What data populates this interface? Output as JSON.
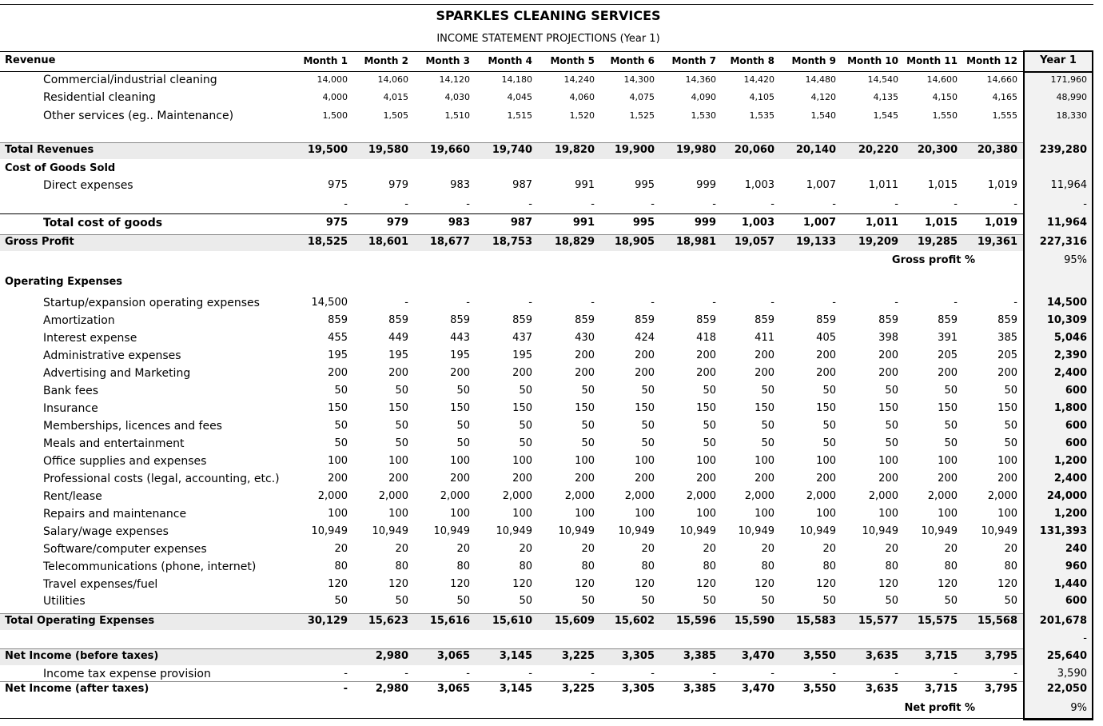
{
  "header": {
    "title": "SPARKLES CLEANING SERVICES",
    "subtitle": "INCOME STATEMENT PROJECTIONS (Year 1)"
  },
  "table": {
    "section": "Revenue",
    "columns": [
      "Month 1",
      "Month 2",
      "Month 3",
      "Month 4",
      "Month 5",
      "Month 6",
      "Month 7",
      "Month 8",
      "Month 9",
      "Month 10",
      "Month 11",
      "Month 12"
    ],
    "total_column": "Year 1",
    "rows": [
      {
        "style": "revenue",
        "label": "Commercial/industrial cleaning",
        "values": [
          "14,000",
          "14,060",
          "14,120",
          "14,180",
          "14,240",
          "14,300",
          "14,360",
          "14,420",
          "14,480",
          "14,540",
          "14,600",
          "14,660"
        ],
        "total": "171,960"
      },
      {
        "style": "revenue",
        "label": "Residential cleaning",
        "values": [
          "4,000",
          "4,015",
          "4,030",
          "4,045",
          "4,060",
          "4,075",
          "4,090",
          "4,105",
          "4,120",
          "4,135",
          "4,150",
          "4,165"
        ],
        "total": "48,990"
      },
      {
        "style": "revenue",
        "label": "Other services (eg.. Maintenance)",
        "values": [
          "1,500",
          "1,505",
          "1,510",
          "1,515",
          "1,520",
          "1,525",
          "1,530",
          "1,535",
          "1,540",
          "1,545",
          "1,550",
          "1,555"
        ],
        "total": "18,330"
      },
      {
        "style": "band",
        "label": "Total Revenues",
        "values": [
          "19,500",
          "19,580",
          "19,660",
          "19,740",
          "19,820",
          "19,900",
          "19,980",
          "20,060",
          "20,140",
          "20,220",
          "20,300",
          "20,380"
        ],
        "total": "239,280"
      },
      {
        "style": "section",
        "label": "Cost of Goods Sold"
      },
      {
        "style": "item",
        "label": "Direct expenses",
        "values": [
          "975",
          "979",
          "983",
          "987",
          "991",
          "995",
          "999",
          "1,003",
          "1,007",
          "1,011",
          "1,015",
          "1,019"
        ],
        "total": "11,964"
      },
      {
        "style": "item",
        "values": [
          "-",
          "-",
          "-",
          "-",
          "-",
          "-",
          "-",
          "-",
          "-",
          "-",
          "-",
          "-"
        ],
        "total": "-"
      },
      {
        "style": "subtotal",
        "label": "Total cost of goods",
        "values": [
          "975",
          "979",
          "983",
          "987",
          "991",
          "995",
          "999",
          "1,003",
          "1,007",
          "1,011",
          "1,015",
          "1,019"
        ],
        "total": "11,964"
      },
      {
        "style": "band",
        "label": "Gross Profit",
        "values": [
          "18,525",
          "18,601",
          "18,677",
          "18,753",
          "18,829",
          "18,905",
          "18,981",
          "19,057",
          "19,133",
          "19,209",
          "19,285",
          "19,361"
        ],
        "total": "227,316"
      },
      {
        "style": "ratio",
        "label": "Gross profit %",
        "total": "95%"
      },
      {
        "style": "section",
        "label": "Operating Expenses"
      },
      {
        "style": "expense",
        "label": "Startup/expansion operating expenses",
        "values": [
          "14,500",
          "-",
          "-",
          "-",
          "-",
          "-",
          "-",
          "-",
          "-",
          "-",
          "-",
          "-"
        ],
        "total": "14,500"
      },
      {
        "style": "expense",
        "label": "Amortization",
        "values": [
          "859",
          "859",
          "859",
          "859",
          "859",
          "859",
          "859",
          "859",
          "859",
          "859",
          "859",
          "859"
        ],
        "total": "10,309"
      },
      {
        "style": "expense",
        "label": "Interest expense",
        "values": [
          "455",
          "449",
          "443",
          "437",
          "430",
          "424",
          "418",
          "411",
          "405",
          "398",
          "391",
          "385"
        ],
        "total": "5,046"
      },
      {
        "style": "expense",
        "label": "Administrative expenses",
        "values": [
          "195",
          "195",
          "195",
          "195",
          "200",
          "200",
          "200",
          "200",
          "200",
          "200",
          "205",
          "205"
        ],
        "total": "2,390"
      },
      {
        "style": "expense",
        "label": "Advertising and Marketing",
        "values": [
          "200",
          "200",
          "200",
          "200",
          "200",
          "200",
          "200",
          "200",
          "200",
          "200",
          "200",
          "200"
        ],
        "total": "2,400"
      },
      {
        "style": "expense",
        "label": "Bank fees",
        "values": [
          "50",
          "50",
          "50",
          "50",
          "50",
          "50",
          "50",
          "50",
          "50",
          "50",
          "50",
          "50"
        ],
        "total": "600"
      },
      {
        "style": "expense",
        "label": "Insurance",
        "values": [
          "150",
          "150",
          "150",
          "150",
          "150",
          "150",
          "150",
          "150",
          "150",
          "150",
          "150",
          "150"
        ],
        "total": "1,800"
      },
      {
        "style": "expense",
        "label": "Memberships, licences and fees",
        "values": [
          "50",
          "50",
          "50",
          "50",
          "50",
          "50",
          "50",
          "50",
          "50",
          "50",
          "50",
          "50"
        ],
        "total": "600"
      },
      {
        "style": "expense",
        "label": "Meals and entertainment",
        "values": [
          "50",
          "50",
          "50",
          "50",
          "50",
          "50",
          "50",
          "50",
          "50",
          "50",
          "50",
          "50"
        ],
        "total": "600"
      },
      {
        "style": "expense",
        "label": "Office supplies and expenses",
        "values": [
          "100",
          "100",
          "100",
          "100",
          "100",
          "100",
          "100",
          "100",
          "100",
          "100",
          "100",
          "100"
        ],
        "total": "1,200"
      },
      {
        "style": "expense",
        "label": "Professional costs (legal, accounting, etc.)",
        "values": [
          "200",
          "200",
          "200",
          "200",
          "200",
          "200",
          "200",
          "200",
          "200",
          "200",
          "200",
          "200"
        ],
        "total": "2,400"
      },
      {
        "style": "expense",
        "label": "Rent/lease",
        "values": [
          "2,000",
          "2,000",
          "2,000",
          "2,000",
          "2,000",
          "2,000",
          "2,000",
          "2,000",
          "2,000",
          "2,000",
          "2,000",
          "2,000"
        ],
        "total": "24,000"
      },
      {
        "style": "expense",
        "label": "Repairs and maintenance",
        "values": [
          "100",
          "100",
          "100",
          "100",
          "100",
          "100",
          "100",
          "100",
          "100",
          "100",
          "100",
          "100"
        ],
        "total": "1,200"
      },
      {
        "style": "expense",
        "label": "Salary/wage expenses",
        "values": [
          "10,949",
          "10,949",
          "10,949",
          "10,949",
          "10,949",
          "10,949",
          "10,949",
          "10,949",
          "10,949",
          "10,949",
          "10,949",
          "10,949"
        ],
        "total": "131,393"
      },
      {
        "style": "expense",
        "label": "Software/computer expenses",
        "values": [
          "20",
          "20",
          "20",
          "20",
          "20",
          "20",
          "20",
          "20",
          "20",
          "20",
          "20",
          "20"
        ],
        "total": "240"
      },
      {
        "style": "expense",
        "label": "Telecommunications (phone, internet)",
        "values": [
          "80",
          "80",
          "80",
          "80",
          "80",
          "80",
          "80",
          "80",
          "80",
          "80",
          "80",
          "80"
        ],
        "total": "960"
      },
      {
        "style": "expense",
        "label": "Travel expenses/fuel",
        "values": [
          "120",
          "120",
          "120",
          "120",
          "120",
          "120",
          "120",
          "120",
          "120",
          "120",
          "120",
          "120"
        ],
        "total": "1,440"
      },
      {
        "style": "expense",
        "label": "Utilities",
        "values": [
          "50",
          "50",
          "50",
          "50",
          "50",
          "50",
          "50",
          "50",
          "50",
          "50",
          "50",
          "50"
        ],
        "total": "600"
      },
      {
        "style": "band",
        "label": "Total Operating Expenses",
        "values": [
          "30,129",
          "15,623",
          "15,616",
          "15,610",
          "15,609",
          "15,602",
          "15,596",
          "15,590",
          "15,583",
          "15,577",
          "15,575",
          "15,568"
        ],
        "total": "201,678"
      },
      {
        "style": "item",
        "total": "-"
      },
      {
        "style": "band",
        "label": "Net Income (before taxes)",
        "values": [
          null,
          "2,980",
          "3,065",
          "3,145",
          "3,225",
          "3,305",
          "3,385",
          "3,470",
          "3,550",
          "3,635",
          "3,715",
          "3,795"
        ],
        "total": "25,640"
      },
      {
        "style": "item",
        "label": "Income tax expense provision",
        "values": [
          "-",
          "-",
          "-",
          "-",
          "-",
          "-",
          "-",
          "-",
          "-",
          "-",
          "-",
          "-"
        ],
        "total": "3,590"
      },
      {
        "style": "final",
        "label": "Net Income (after taxes)",
        "values": [
          "-",
          "2,980",
          "3,065",
          "3,145",
          "3,225",
          "3,305",
          "3,385",
          "3,470",
          "3,550",
          "3,635",
          "3,715",
          "3,795"
        ],
        "total": "22,050"
      },
      {
        "style": "ratio",
        "label": "Net profit %",
        "total": "9%"
      }
    ]
  }
}
